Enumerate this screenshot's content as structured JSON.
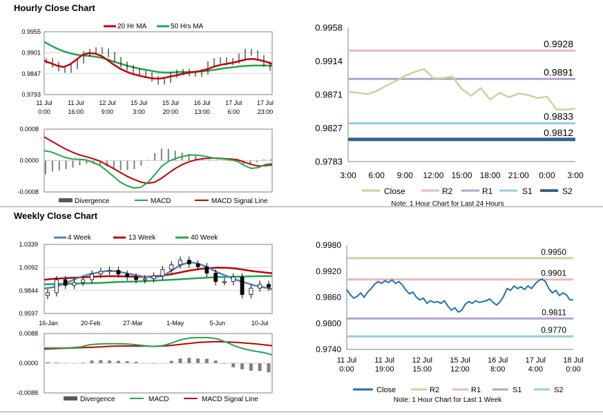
{
  "titles": {
    "hourly": "Hourly Close Chart",
    "weekly": "Weekly Close Chart"
  },
  "colors": {
    "ma_short": "#c00000",
    "ma_long": "#21a44f",
    "price": "#000000",
    "macd": "#21a44f",
    "signal": "#c00000",
    "divergence": "#7f7f7f",
    "close_line": "#c3d69b",
    "weekly_close": "#1f6eb5",
    "r2": "#e6b9b8",
    "r1": "#b3a2c7",
    "s1": "#92cddc",
    "s2": "#366092",
    "r2_weekly": "#c3d69b",
    "r1_weekly": "#e6b9b8",
    "s1_weekly": "#b3a2c7",
    "s2_weekly": "#92cddc"
  },
  "chart_data": [
    {
      "id": "hourly_price",
      "type": "line",
      "title": "Hourly Close Chart",
      "legend": [
        "20 Hr MA",
        "50 Hrs MA"
      ],
      "ylim": [
        0.9793,
        0.9955
      ],
      "yticks": [
        "0.9955",
        "0.9901",
        "0.9847",
        "0.9793"
      ],
      "xticks": [
        [
          "11 Jul",
          "0:00"
        ],
        [
          "11 Jul",
          "16:00"
        ],
        [
          "12 Jul",
          "9:00"
        ],
        [
          "15 Jul",
          "3:00"
        ],
        [
          "15 Jul",
          "20:00"
        ],
        [
          "16 Jul",
          "13:00"
        ],
        [
          "17 Jul",
          "6:00"
        ],
        [
          "17 Jul",
          "23:00"
        ]
      ],
      "series": [
        {
          "name": "Price",
          "values": [
            0.988,
            0.987,
            0.986,
            0.9856,
            0.9866,
            0.988,
            0.9898,
            0.9904,
            0.9908,
            0.9905,
            0.9896,
            0.9883,
            0.9871,
            0.9862,
            0.9852,
            0.9848,
            0.9844,
            0.9834,
            0.9826,
            0.983,
            0.9843,
            0.985,
            0.9852,
            0.9848,
            0.9846,
            0.9852,
            0.9872,
            0.988,
            0.9882,
            0.9876,
            0.988,
            0.9892,
            0.9904,
            0.99,
            0.9888,
            0.9872,
            0.9862
          ]
        },
        {
          "name": "20 Hr MA",
          "values": [
            0.988,
            0.9874,
            0.9868,
            0.9864,
            0.987,
            0.9882,
            0.9895,
            0.99,
            0.9899,
            0.9893,
            0.9882,
            0.987,
            0.986,
            0.9852,
            0.9846,
            0.9842,
            0.9838,
            0.9835,
            0.9834,
            0.9836,
            0.984,
            0.9843,
            0.9847,
            0.985,
            0.9852,
            0.9855,
            0.986,
            0.9866,
            0.987,
            0.9873,
            0.9876,
            0.988,
            0.9884,
            0.9885,
            0.9882,
            0.9878,
            0.9872
          ]
        },
        {
          "name": "50 Hrs MA",
          "values": [
            0.9929,
            0.992,
            0.9912,
            0.9905,
            0.99,
            0.9896,
            0.9894,
            0.9893,
            0.9891,
            0.9888,
            0.9884,
            0.9878,
            0.9873,
            0.9868,
            0.9864,
            0.986,
            0.9857,
            0.9854,
            0.9851,
            0.985,
            0.985,
            0.9851,
            0.9851,
            0.9851,
            0.9852,
            0.9853,
            0.9855,
            0.9857,
            0.986,
            0.9862,
            0.9864,
            0.9866,
            0.9867,
            0.9868,
            0.9868,
            0.9868,
            0.9867
          ]
        }
      ]
    },
    {
      "id": "hourly_macd",
      "type": "line",
      "legend": [
        "Divergence",
        "MACD",
        "MACD Signal Line"
      ],
      "ylim": [
        -0.0008,
        0.0008
      ],
      "yticks": [
        "0.0008",
        "0.0000",
        "-0.0008"
      ],
      "series": [
        {
          "name": "MACD",
          "values": [
            0.00025,
            0.00022,
            0.00015,
            8e-05,
            4e-05,
            3e-05,
            2e-05,
            -4e-05,
            -0.00012,
            -0.00025,
            -0.0004,
            -0.00055,
            -0.00064,
            -0.0007,
            -0.00068,
            -0.00056,
            -0.00036,
            -0.00015,
            -2e-05,
            5e-05,
            0.0001,
            0.00014,
            0.00014,
            0.00012,
            8e-05,
            5e-05,
            4e-05,
            2e-05,
            -2e-05,
            -0.00013,
            -0.0002,
            -0.00018,
            -0.0001,
            -8e-05
          ]
        },
        {
          "name": "MACD Signal Line",
          "values": [
            0.0006,
            0.0005,
            0.0004,
            0.0003,
            0.00022,
            0.00015,
            0.0001,
            5e-05,
            -1e-05,
            -0.0001,
            -0.0002,
            -0.0003,
            -0.0004,
            -0.00048,
            -0.00055,
            -0.00058,
            -0.00055,
            -0.00045,
            -0.00032,
            -0.0002,
            -0.0001,
            -3e-05,
            2e-05,
            5e-05,
            6e-05,
            6e-05,
            5e-05,
            4e-05,
            2e-05,
            -4e-05,
            -0.0001,
            -0.00014,
            -0.00013,
            -0.00011
          ]
        },
        {
          "name": "Divergence",
          "values": [
            -0.00035,
            -0.00028,
            -0.00025,
            -0.00022,
            -0.00018,
            -0.00012,
            -8e-05,
            -9e-05,
            -0.00011,
            -0.00015,
            -0.0002,
            -0.00025,
            -0.00024,
            -0.00022,
            -0.00013,
            2e-05,
            0.00019,
            0.0003,
            0.0003,
            0.00025,
            0.0002,
            0.00017,
            0.00012,
            7e-05,
            2e-05,
            -1e-05,
            -1e-05,
            -2e-05,
            -4e-05,
            -9e-05,
            -0.0001,
            -4e-05,
            3e-05,
            3e-05
          ]
        }
      ]
    },
    {
      "id": "hourly_levels",
      "type": "line",
      "legend": [
        "Close",
        "R2",
        "R1",
        "S1",
        "S2"
      ],
      "note": "Note: 1 Hour Chart for Last 24 Hours",
      "ylim": [
        0.9783,
        0.9958
      ],
      "yticks": [
        "0.9958",
        "0.9914",
        "0.9871",
        "0.9827",
        "0.9783"
      ],
      "xticks": [
        "3:00",
        "6:00",
        "9:00",
        "12:00",
        "15:00",
        "18:00",
        "21:00",
        "0:00",
        "3:00"
      ],
      "levels": [
        {
          "name": "R2",
          "value": 0.9928,
          "label": "0.9928"
        },
        {
          "name": "R1",
          "value": 0.9891,
          "label": "0.9891"
        },
        {
          "name": "S1",
          "value": 0.9833,
          "label": "0.9833"
        },
        {
          "name": "S2",
          "value": 0.9812,
          "label": "0.9812"
        }
      ],
      "close": [
        0.9874,
        0.9873,
        0.9871,
        0.9875,
        0.9882,
        0.9888,
        0.9895,
        0.99,
        0.9904,
        0.9892,
        0.9892,
        0.9894,
        0.9878,
        0.9869,
        0.9879,
        0.9864,
        0.9873,
        0.9867,
        0.9872,
        0.987,
        0.9866,
        0.9868,
        0.9851,
        0.9851,
        0.9852
      ]
    },
    {
      "id": "weekly_price",
      "type": "line",
      "title": "Weekly Close Chart",
      "legend": [
        "4 Week",
        "13 Week",
        "40 Week"
      ],
      "ylim": [
        0.9597,
        1.0339
      ],
      "yticks": [
        "1.0339",
        "1.0092",
        "0.9844",
        "0.9597"
      ],
      "xticks": [
        "16-Jan",
        "20-Feb",
        "27-Mar",
        "1-May",
        "5-Jun",
        "10-Jul"
      ],
      "series": [
        {
          "name": "Price",
          "values": [
            0.982,
            0.996,
            0.99,
            0.993,
            0.996,
            1.002,
            1.005,
            1.006,
            1.002,
            0.999,
            0.996,
            0.997,
            1.0,
            1.007,
            1.012,
            1.017,
            1.013,
            1.01,
            1.003,
            0.994,
            0.994,
            0.999,
            0.98,
            0.987,
            0.991,
            0.988
          ]
        },
        {
          "name": "4 Week",
          "values": [
            0.9865,
            0.988,
            0.991,
            0.995,
            0.999,
            1.002,
            1.004,
            1.0055,
            1.005,
            1.003,
            1.001,
            0.999,
            0.9985,
            1.0,
            1.006,
            1.012,
            1.015,
            1.013,
            1.009,
            1.004,
            1.0,
            0.996,
            0.993,
            0.99,
            0.988,
            0.986
          ]
        },
        {
          "name": "13 Week",
          "values": [
            0.996,
            0.997,
            0.9975,
            0.998,
            0.9985,
            0.999,
            0.9995,
            0.9998,
            0.9998,
            0.9995,
            0.9992,
            0.999,
            0.9995,
            1.0005,
            1.002,
            1.004,
            1.006,
            1.0075,
            1.0085,
            1.009,
            1.0088,
            1.008,
            1.0065,
            1.005,
            1.004,
            1.003
          ]
        },
        {
          "name": "40 Week",
          "values": [
            0.991,
            0.9912,
            0.9914,
            0.9917,
            0.992,
            0.9923,
            0.9926,
            0.993,
            0.9935,
            0.9938,
            0.994,
            0.9945,
            0.995,
            0.9955,
            0.996,
            0.9965,
            0.9972,
            0.9978,
            0.9983,
            0.9988,
            0.999,
            0.9992,
            0.9995,
            0.9997,
            0.9999,
            1.0
          ]
        }
      ]
    },
    {
      "id": "weekly_macd",
      "type": "line",
      "legend": [
        "Divergence",
        "MACD",
        "MACD Signal Line"
      ],
      "ylim": [
        -0.0088,
        0.0088
      ],
      "yticks": [
        "0.0088",
        "0.0000",
        "-0.0088"
      ],
      "series": [
        {
          "name": "MACD",
          "values": [
            0.0045,
            0.0045,
            0.0045,
            0.0046,
            0.0048,
            0.0055,
            0.0057,
            0.0058,
            0.0058,
            0.0057,
            0.0055,
            0.0052,
            0.005,
            0.0052,
            0.006,
            0.007,
            0.0075,
            0.0076,
            0.0076,
            0.0072,
            0.0062,
            0.005,
            0.0042,
            0.0036,
            0.0032,
            0.0025
          ]
        },
        {
          "name": "MACD Signal Line",
          "values": [
            0.0042,
            0.0043,
            0.0044,
            0.0045,
            0.0046,
            0.0047,
            0.0048,
            0.005,
            0.0051,
            0.0051,
            0.0051,
            0.0051,
            0.005,
            0.0051,
            0.0053,
            0.0056,
            0.0059,
            0.0062,
            0.0063,
            0.0064,
            0.0063,
            0.0062,
            0.006,
            0.0058,
            0.0055,
            0.0052
          ]
        },
        {
          "name": "Divergence",
          "values": [
            0.0003,
            0.0002,
            0.0001,
            0.0001,
            0.0002,
            0.0008,
            0.0009,
            0.0008,
            0.0007,
            0.0006,
            0.0004,
            0.0001,
            0.0,
            0.0001,
            0.0007,
            0.0014,
            0.0016,
            0.0014,
            0.0013,
            0.0008,
            -0.0001,
            -0.0012,
            -0.0018,
            -0.0022,
            -0.0023,
            -0.0027
          ]
        }
      ]
    },
    {
      "id": "weekly_levels",
      "type": "line",
      "legend": [
        "Close",
        "R2",
        "R1",
        "S1",
        "S2"
      ],
      "note": "Note: 1 Hour Chart for Last 1 Week",
      "ylim": [
        0.974,
        0.998
      ],
      "yticks": [
        "0.9980",
        "0.9920",
        "0.9860",
        "0.9800",
        "0.9740"
      ],
      "xticks": [
        [
          "11 Jul",
          "0:00"
        ],
        [
          "11 Jul",
          "19:00"
        ],
        [
          "12 Jul",
          "15:00"
        ],
        [
          "15 Jul",
          "12:00"
        ],
        [
          "16 Jul",
          "8:00"
        ],
        [
          "17 Jul",
          "4:00"
        ],
        [
          "18 Jul",
          "0:00"
        ]
      ],
      "levels": [
        {
          "name": "R2",
          "value": 0.995,
          "label": "0.9950"
        },
        {
          "name": "R1",
          "value": 0.9901,
          "label": "0.9901"
        },
        {
          "name": "S1",
          "value": 0.9811,
          "label": "0.9811"
        },
        {
          "name": "S2",
          "value": 0.977,
          "label": "0.9770"
        }
      ],
      "close": [
        0.9878,
        0.9866,
        0.9858,
        0.9862,
        0.987,
        0.986,
        0.9872,
        0.988,
        0.989,
        0.9896,
        0.9892,
        0.9898,
        0.9894,
        0.99,
        0.9892,
        0.9896,
        0.9888,
        0.9876,
        0.9868,
        0.9872,
        0.986,
        0.9854,
        0.9858,
        0.9846,
        0.9852,
        0.9848,
        0.985,
        0.9846,
        0.9852,
        0.984,
        0.983,
        0.9836,
        0.9826,
        0.983,
        0.9844,
        0.985,
        0.9846,
        0.9852,
        0.9848,
        0.985,
        0.9852,
        0.9856,
        0.9848,
        0.9842,
        0.985,
        0.9862,
        0.988,
        0.9876,
        0.9886,
        0.988,
        0.9884,
        0.9878,
        0.9886,
        0.988,
        0.989,
        0.9898,
        0.9902,
        0.9896,
        0.988,
        0.987,
        0.9876,
        0.9864,
        0.987,
        0.9866,
        0.9854,
        0.9854
      ]
    }
  ]
}
